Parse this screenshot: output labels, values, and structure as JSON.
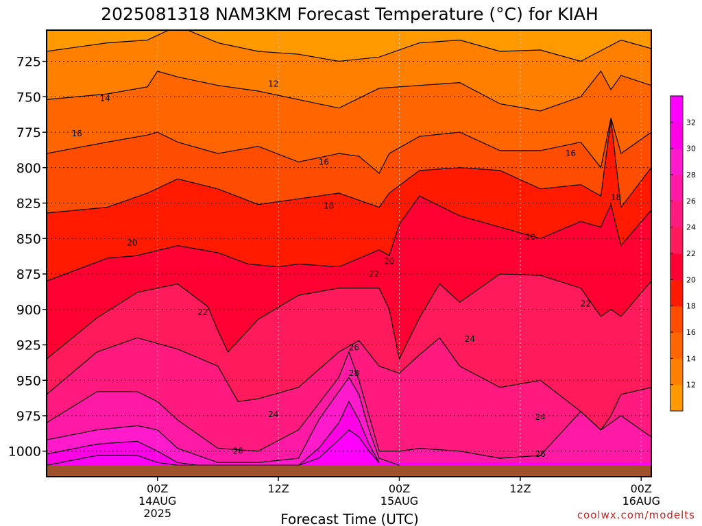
{
  "chart_data": {
    "type": "heatmap",
    "title": "2025081318 NAM3KM Forecast Temperature (°C) for KIAH",
    "xlabel": "Forecast Time (UTC)",
    "ylabel": "",
    "y_ticks": [
      725,
      750,
      775,
      800,
      825,
      850,
      875,
      900,
      925,
      950,
      975,
      1000
    ],
    "y_range_hpa": [
      703,
      1018
    ],
    "y_inverted": true,
    "x_range_hours": [
      -5,
      55
    ],
    "x_ticks": [
      {
        "hour": 6,
        "lines": [
          "00Z",
          "14AUG",
          "2025"
        ]
      },
      {
        "hour": 18,
        "lines": [
          "12Z"
        ]
      },
      {
        "hour": 30,
        "lines": [
          "00Z",
          "15AUG"
        ]
      },
      {
        "hour": 42,
        "lines": [
          "12Z"
        ]
      },
      {
        "hour": 54,
        "lines": [
          "00Z",
          "16AUG"
        ]
      }
    ],
    "grid": true,
    "colorbar": {
      "position": "right",
      "ticks": [
        12,
        14,
        16,
        18,
        20,
        22,
        24,
        26,
        28,
        30,
        32
      ],
      "colors": [
        "#ff9900",
        "#ff7f00",
        "#ff6600",
        "#ff4d00",
        "#ff1a00",
        "#ff0033",
        "#ff1a5c",
        "#ff1a80",
        "#ff1aa6",
        "#ff1acc",
        "#ff00e6",
        "#ff00ff"
      ]
    },
    "contour_labels": [
      {
        "t": "12",
        "hour": 17.5,
        "p": 741
      },
      {
        "t": "14",
        "hour": 0.8,
        "p": 751
      },
      {
        "t": "16",
        "hour": -2.0,
        "p": 776
      },
      {
        "t": "16",
        "hour": 22.5,
        "p": 796
      },
      {
        "t": "16",
        "hour": 47.0,
        "p": 790
      },
      {
        "t": "18",
        "hour": 23.0,
        "p": 827
      },
      {
        "t": "18",
        "hour": 51.5,
        "p": 821
      },
      {
        "t": "20",
        "hour": 3.5,
        "p": 853
      },
      {
        "t": "20",
        "hour": 29.0,
        "p": 866
      },
      {
        "t": "20",
        "hour": 43.0,
        "p": 849
      },
      {
        "t": "22",
        "hour": 10.5,
        "p": 902
      },
      {
        "t": "22",
        "hour": 27.5,
        "p": 875
      },
      {
        "t": "22",
        "hour": 48.5,
        "p": 896
      },
      {
        "t": "24",
        "hour": 37.0,
        "p": 921
      },
      {
        "t": "24",
        "hour": 17.5,
        "p": 974
      },
      {
        "t": "24",
        "hour": 44.0,
        "p": 976
      },
      {
        "t": "26",
        "hour": 25.5,
        "p": 927
      },
      {
        "t": "26",
        "hour": 14.0,
        "p": 1000
      },
      {
        "t": "26",
        "hour": 44.0,
        "p": 1002
      },
      {
        "t": "28",
        "hour": 25.5,
        "p": 945
      }
    ],
    "isotherms": [
      {
        "v": 12,
        "h": [
          -5,
          1,
          5,
          8,
          12,
          16,
          20,
          24,
          28,
          32,
          36,
          40,
          44,
          48,
          52,
          55
        ],
        "p": [
          718,
          712,
          710,
          700,
          712,
          718,
          720,
          725,
          722,
          712,
          710,
          718,
          717,
          725,
          710,
          716
        ]
      },
      {
        "v": 14,
        "h": [
          -5,
          1,
          5,
          6,
          8,
          12,
          16,
          20,
          24,
          28,
          32,
          36,
          40,
          44,
          48,
          50,
          51,
          52,
          55
        ],
        "p": [
          752,
          748,
          743,
          732,
          736,
          742,
          746,
          752,
          758,
          744,
          742,
          740,
          755,
          760,
          750,
          732,
          745,
          735,
          742
        ]
      },
      {
        "v": 16,
        "h": [
          -5,
          1,
          5,
          6,
          8,
          12,
          16,
          20,
          24,
          26,
          28,
          29,
          32,
          36,
          40,
          44,
          48,
          50,
          51,
          52,
          55
        ],
        "p": [
          790,
          782,
          777,
          775,
          782,
          790,
          785,
          796,
          790,
          792,
          804,
          790,
          778,
          775,
          788,
          788,
          782,
          800,
          765,
          790,
          775
        ]
      },
      {
        "v": 18,
        "h": [
          -5,
          1,
          5,
          8,
          12,
          16,
          20,
          24,
          28,
          29,
          32,
          36,
          40,
          44,
          48,
          50,
          51,
          52,
          55
        ],
        "p": [
          832,
          828,
          818,
          808,
          815,
          826,
          822,
          818,
          828,
          818,
          802,
          800,
          802,
          815,
          812,
          820,
          766,
          828,
          800
        ]
      },
      {
        "v": 20,
        "h": [
          -5,
          1,
          4,
          8,
          12,
          15,
          18,
          20,
          24,
          28,
          29,
          30,
          32,
          36,
          40,
          44,
          48,
          50,
          51,
          52,
          55
        ],
        "p": [
          880,
          864,
          862,
          855,
          860,
          868,
          870,
          868,
          870,
          858,
          862,
          840,
          820,
          834,
          842,
          850,
          838,
          842,
          826,
          855,
          830
        ]
      },
      {
        "v": 22,
        "h": [
          -5,
          0,
          4,
          8,
          11,
          12,
          13,
          16,
          20,
          24,
          28,
          29,
          30,
          32,
          34,
          36,
          40,
          44,
          48,
          50,
          51,
          52,
          55
        ],
        "p": [
          935,
          906,
          888,
          882,
          898,
          915,
          930,
          907,
          890,
          885,
          885,
          900,
          935,
          906,
          882,
          895,
          875,
          876,
          885,
          905,
          900,
          905,
          880
        ]
      },
      {
        "v": 24,
        "h": [
          -5,
          0,
          4,
          8,
          12,
          14,
          16,
          20,
          24,
          26,
          28,
          30,
          32,
          34,
          36,
          40,
          44,
          48,
          50,
          51,
          52,
          55
        ],
        "p": [
          960,
          930,
          920,
          928,
          940,
          965,
          963,
          955,
          930,
          922,
          940,
          945,
          932,
          920,
          940,
          955,
          950,
          972,
          985,
          975,
          960,
          955
        ]
      },
      {
        "v": 26,
        "h": [
          -5,
          0,
          4,
          6,
          8,
          12,
          16,
          20,
          24,
          25,
          26,
          28,
          30,
          32,
          36,
          40,
          44,
          48,
          50,
          52,
          55
        ],
        "p": [
          980,
          958,
          958,
          965,
          978,
          998,
          1000,
          985,
          948,
          930,
          950,
          1000,
          1000,
          998,
          1000,
          1005,
          1003,
          972,
          985,
          975,
          990
        ]
      },
      {
        "v": 28,
        "h": [
          -5,
          0,
          4,
          6,
          8,
          12,
          16,
          20,
          22,
          24,
          25,
          26,
          27,
          28,
          30
        ],
        "p": [
          992,
          985,
          982,
          985,
          998,
          1008,
          1008,
          1005,
          978,
          958,
          948,
          960,
          985,
          1005,
          1010
        ]
      },
      {
        "v": 30,
        "h": [
          -5,
          0,
          4,
          6,
          8,
          10,
          20,
          22,
          24,
          25,
          26,
          27,
          28
        ],
        "p": [
          1002,
          995,
          993,
          1000,
          1008,
          1010,
          1010,
          998,
          980,
          965,
          978,
          995,
          1008
        ]
      },
      {
        "v": 32,
        "h": [
          -5,
          0,
          4,
          6,
          8,
          20,
          22,
          24,
          25,
          26,
          27,
          28
        ],
        "p": [
          1010,
          1003,
          1003,
          1008,
          1010,
          1010,
          1005,
          992,
          985,
          990,
          1000,
          1008
        ]
      }
    ],
    "terrain_top_hpa": 1010,
    "terrain_color": "#a0522d"
  },
  "credit": "coolwx.com/modelts"
}
